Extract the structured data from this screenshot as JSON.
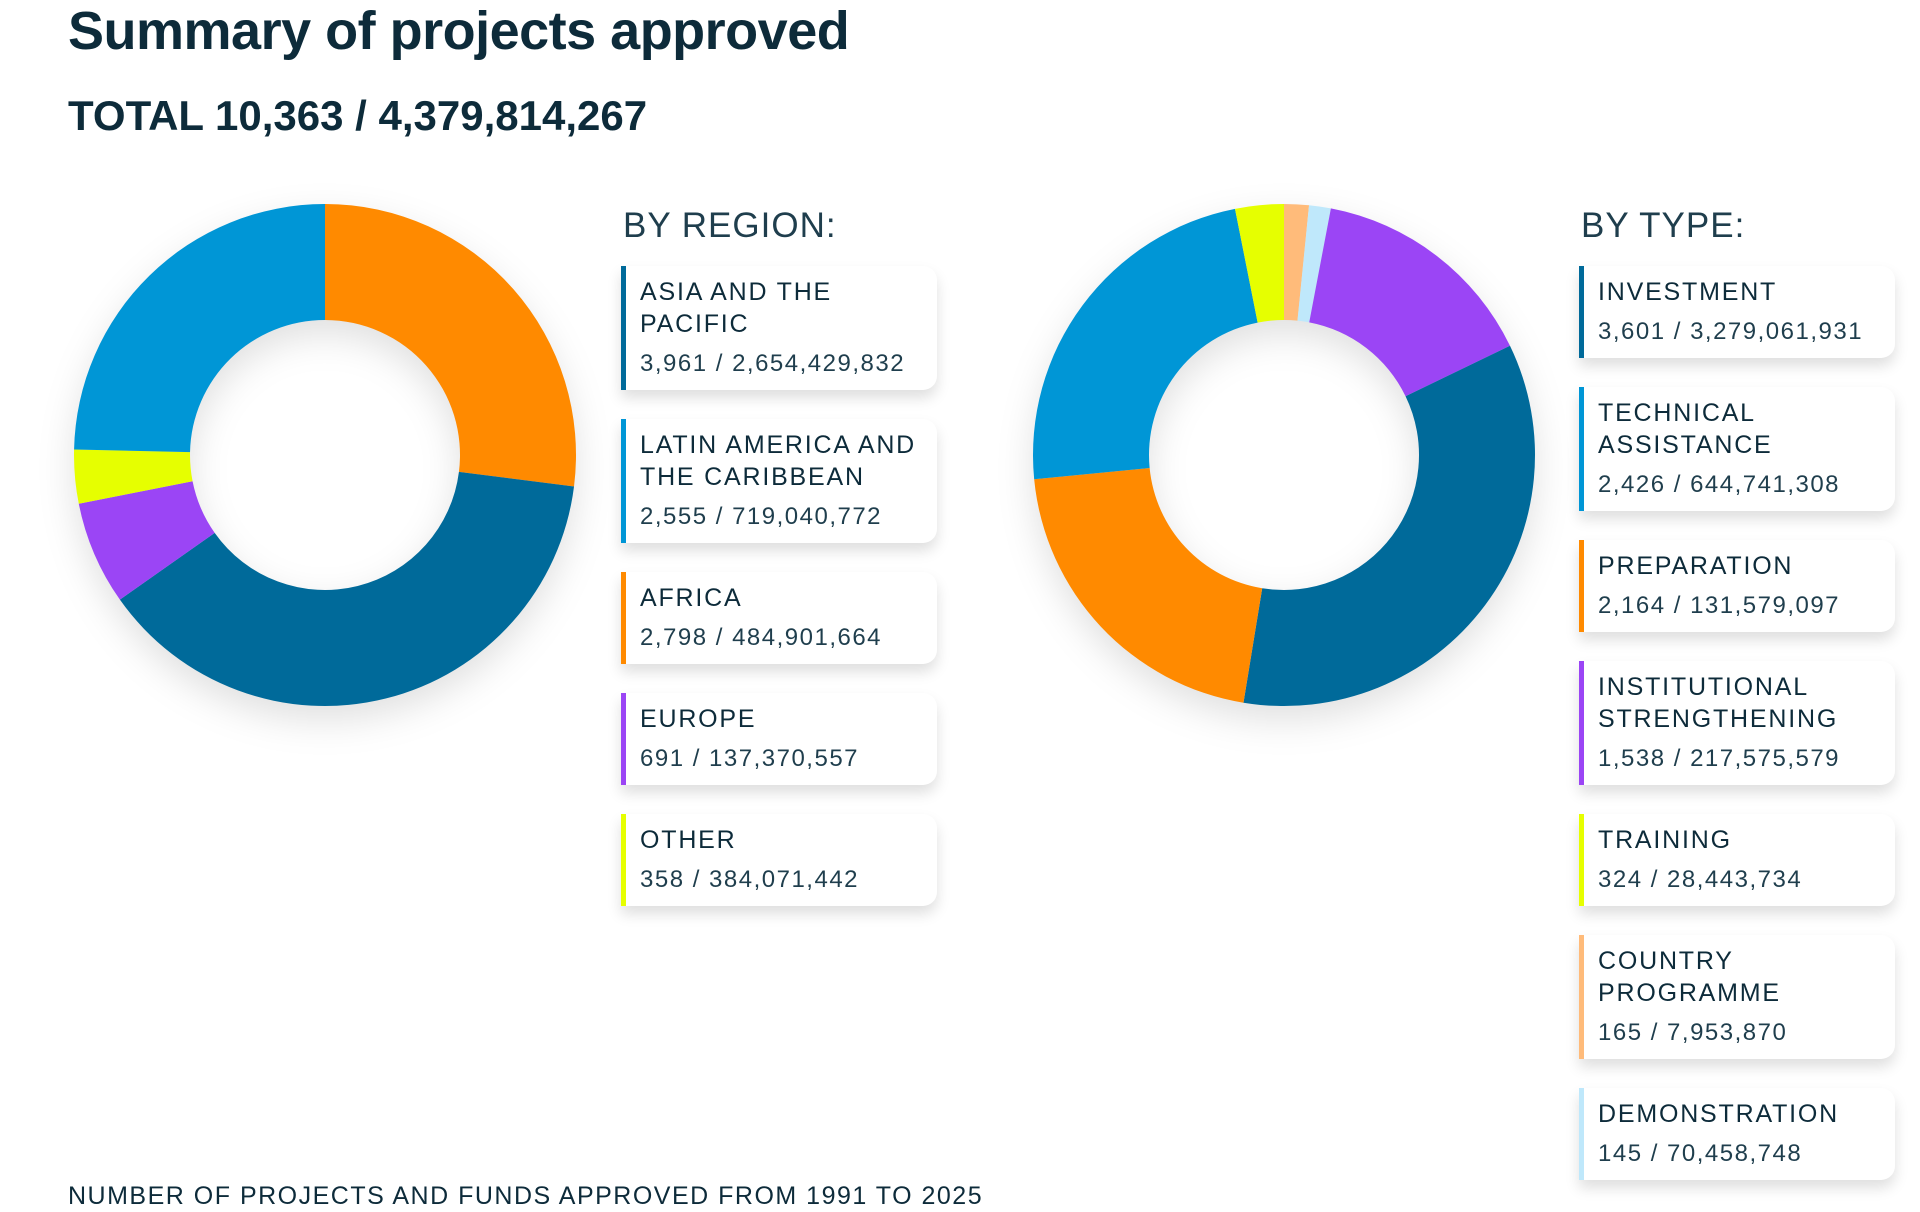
{
  "title": "Summary of projects approved",
  "total": "TOTAL 10,363 / 4,379,814,267",
  "footer": "NUMBER OF PROJECTS AND FUNDS APPROVED FROM 1991 TO 2025",
  "chart_data": [
    {
      "type": "pie",
      "subtype": "donut",
      "title": "BY REGION:",
      "items": [
        {
          "name": "ASIA AND THE PACIFIC",
          "count": 3961,
          "funds": 2654429832,
          "label": "3,961 / 2,654,429,832",
          "color": "#006a9a"
        },
        {
          "name": "LATIN AMERICA AND THE CARIBBEAN",
          "count": 2555,
          "funds": 719040772,
          "label": "2,555 / 719,040,772",
          "color": "#0096d6"
        },
        {
          "name": "AFRICA",
          "count": 2798,
          "funds": 484901664,
          "label": "2,798 / 484,901,664",
          "color": "#ff8a00"
        },
        {
          "name": "EUROPE",
          "count": 691,
          "funds": 137370557,
          "label": "691 / 137,370,557",
          "color": "#9b45f5"
        },
        {
          "name": "OTHER",
          "count": 358,
          "funds": 384071442,
          "label": "358 / 384,071,442",
          "color": "#e6ff00"
        }
      ],
      "slice_order": [
        "AFRICA",
        "ASIA AND THE PACIFIC",
        "EUROPE",
        "OTHER",
        "LATIN AMERICA AND THE CARIBBEAN"
      ]
    },
    {
      "type": "pie",
      "subtype": "donut",
      "title": "BY TYPE:",
      "items": [
        {
          "name": "INVESTMENT",
          "count": 3601,
          "funds": 3279061931,
          "label": "3,601 / 3,279,061,931",
          "color": "#006a9a"
        },
        {
          "name": "TECHNICAL ASSISTANCE",
          "count": 2426,
          "funds": 644741308,
          "label": "2,426 / 644,741,308",
          "color": "#0096d6"
        },
        {
          "name": "PREPARATION",
          "count": 2164,
          "funds": 131579097,
          "label": "2,164 / 131,579,097",
          "color": "#ff8a00"
        },
        {
          "name": "INSTITUTIONAL STRENGTHENING",
          "count": 1538,
          "funds": 217575579,
          "label": "1,538 / 217,575,579",
          "color": "#9b45f5"
        },
        {
          "name": "TRAINING",
          "count": 324,
          "funds": 28443734,
          "label": "324 / 28,443,734",
          "color": "#e6ff00"
        },
        {
          "name": "COUNTRY PROGRAMME",
          "count": 165,
          "funds": 7953870,
          "label": "165 / 7,953,870",
          "color": "#ffbb7a"
        },
        {
          "name": "DEMONSTRATION",
          "count": 145,
          "funds": 70458748,
          "label": "145 / 70,458,748",
          "color": "#bfe8fb"
        }
      ],
      "slice_order": [
        "COUNTRY PROGRAMME",
        "DEMONSTRATION",
        "INSTITUTIONAL STRENGTHENING",
        "INVESTMENT",
        "PREPARATION",
        "TECHNICAL ASSISTANCE",
        "TRAINING"
      ]
    }
  ]
}
